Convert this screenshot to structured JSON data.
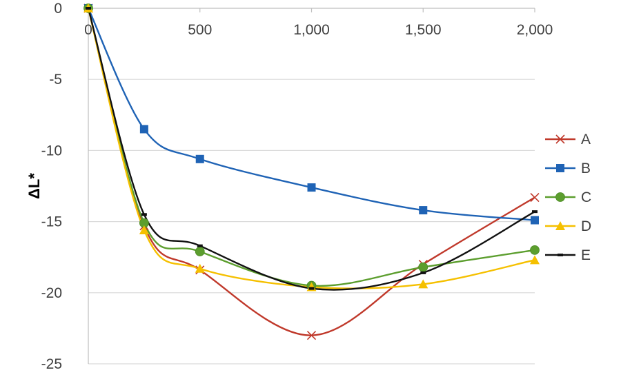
{
  "chart_data": {
    "type": "line",
    "title": "",
    "xlabel": "",
    "ylabel": "ΔL*",
    "xlim": [
      0,
      2000
    ],
    "ylim": [
      -25,
      0
    ],
    "x_ticks": [
      "0",
      "500",
      "1,000",
      "1,500",
      "2,000"
    ],
    "y_ticks": [
      "0",
      "-5",
      "-10",
      "-15",
      "-20",
      "-25"
    ],
    "x_axis_position": "top",
    "grid": "horizontal",
    "legend": "right",
    "smooth": true,
    "x": [
      0,
      250,
      500,
      1000,
      1500,
      2000
    ],
    "series": [
      {
        "name": "A",
        "color": "#c0392b",
        "marker": "x",
        "values": [
          0,
          -15.3,
          -18.4,
          -23.0,
          -18.0,
          -13.3
        ]
      },
      {
        "name": "B",
        "color": "#1f63b5",
        "marker": "square",
        "values": [
          0,
          -8.5,
          -10.6,
          -12.6,
          -14.2,
          -14.9
        ]
      },
      {
        "name": "C",
        "color": "#5c9e2e",
        "marker": "circle",
        "values": [
          0,
          -15.1,
          -17.1,
          -19.5,
          -18.2,
          -17.0
        ]
      },
      {
        "name": "D",
        "color": "#f5c000",
        "marker": "triangle",
        "values": [
          0,
          -15.6,
          -18.3,
          -19.6,
          -19.4,
          -17.7
        ]
      },
      {
        "name": "E",
        "color": "#111111",
        "marker": "dash",
        "values": [
          0,
          -14.5,
          -16.7,
          -19.7,
          -18.6,
          -14.3
        ]
      }
    ]
  }
}
